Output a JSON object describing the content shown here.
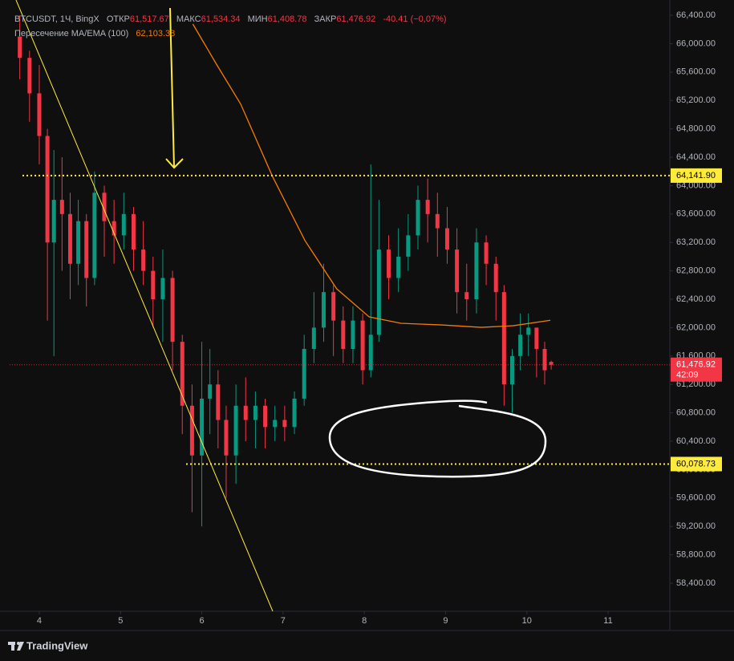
{
  "chart_data": {
    "type": "candlestick",
    "symbol": "BTCUSDT, 1Ч, BingX",
    "ohlc_labels": [
      {
        "name": "ОТКР",
        "value": "61,517.67"
      },
      {
        "name": "МАКС",
        "value": "61,534.34"
      },
      {
        "name": "МИН",
        "value": "61,408.78"
      },
      {
        "name": "ЗАКР",
        "value": "61,476.92"
      }
    ],
    "change": "-40.41 (−0,07%)",
    "up_color": "#089981",
    "down_color": "#f23645",
    "x": [
      3.76,
      3.88,
      4.0,
      4.1,
      4.18,
      4.28,
      4.38,
      4.48,
      4.58,
      4.68,
      4.8,
      4.92,
      5.04,
      5.16,
      5.28,
      5.4,
      5.52,
      5.64,
      5.76,
      5.88,
      6.0,
      6.1,
      6.2,
      6.3,
      6.42,
      6.54,
      6.66,
      6.78,
      6.9,
      7.02,
      7.14,
      7.26,
      7.38,
      7.5,
      7.62,
      7.74,
      7.86,
      7.98,
      8.08,
      8.18,
      8.3,
      8.42,
      8.54,
      8.66,
      8.78,
      8.9,
      9.02,
      9.14,
      9.26,
      9.38,
      9.5,
      9.62,
      9.72,
      9.82,
      9.92,
      10.02,
      10.12,
      10.22,
      10.3
    ],
    "open": [
      66100,
      65800,
      65300,
      64700,
      63200,
      63800,
      63600,
      62900,
      63500,
      62700,
      63900,
      63500,
      63300,
      63600,
      63100,
      62800,
      62400,
      62700,
      61800,
      60900,
      60200,
      61000,
      61200,
      60700,
      60200,
      60900,
      60700,
      60900,
      60600,
      60700,
      60600,
      61000,
      61700,
      62000,
      62500,
      62100,
      61700,
      62100,
      61400,
      61900,
      63100,
      62700,
      63000,
      63300,
      63800,
      63600,
      63400,
      63100,
      62500,
      62400,
      63200,
      62900,
      62500,
      61200,
      61600,
      61900,
      62000,
      61700,
      61517.67
    ],
    "high": [
      66400,
      65900,
      65700,
      64800,
      64500,
      64400,
      63900,
      63800,
      63600,
      64200,
      64000,
      63800,
      63900,
      63700,
      63500,
      63000,
      63100,
      62800,
      61900,
      61200,
      61800,
      61700,
      61400,
      60900,
      61200,
      61300,
      61100,
      61000,
      60900,
      60900,
      61100,
      61900,
      62500,
      62900,
      62600,
      62300,
      62300,
      62200,
      64300,
      63800,
      63300,
      63400,
      63600,
      64000,
      64100,
      63900,
      63700,
      63400,
      62900,
      63400,
      63300,
      63000,
      62600,
      61700,
      62200,
      62200,
      62000,
      61800,
      61534.34
    ],
    "low": [
      65500,
      64900,
      64300,
      62100,
      61600,
      62800,
      62400,
      62600,
      62300,
      62600,
      63000,
      62900,
      63100,
      62800,
      62600,
      62000,
      61800,
      61400,
      60500,
      59400,
      59200,
      60500,
      60300,
      59600,
      59800,
      60400,
      60300,
      60300,
      60400,
      60400,
      60500,
      60900,
      61500,
      61800,
      61600,
      61500,
      61500,
      61200,
      61300,
      61800,
      62400,
      62500,
      62800,
      63100,
      63200,
      63000,
      62900,
      62200,
      62100,
      62200,
      62600,
      62100,
      60900,
      60800,
      61400,
      61600,
      61300,
      61200,
      61408.78
    ],
    "close": [
      65800,
      65300,
      64700,
      63200,
      63800,
      63600,
      62900,
      63500,
      62700,
      63900,
      63500,
      63300,
      63600,
      63100,
      62800,
      62400,
      62700,
      61800,
      60900,
      60200,
      61000,
      61200,
      60700,
      60200,
      60900,
      60700,
      60900,
      60600,
      60700,
      60600,
      61000,
      61700,
      62000,
      62500,
      62100,
      61700,
      62100,
      61400,
      61900,
      63100,
      62700,
      63000,
      63300,
      63800,
      63600,
      63400,
      63100,
      62500,
      62400,
      63200,
      62900,
      62500,
      61200,
      61600,
      61900,
      62000,
      61700,
      61400,
      61476.92
    ],
    "indicator": {
      "name": "Пересечение MA/EMA (100)",
      "value_label": "62,103.38",
      "color": "#f57c00",
      "x": [
        5.89,
        6.18,
        6.48,
        6.87,
        7.27,
        7.66,
        8.06,
        8.45,
        8.95,
        9.44,
        9.83,
        10.29
      ],
      "values": [
        66276,
        65711,
        65146,
        64130,
        63226,
        62547,
        62151,
        62061,
        62038,
        62004,
        62027,
        62103.38
      ]
    },
    "xlim": [
      3.635,
      11.76
    ],
    "ylim": [
      58005,
      66502
    ],
    "xticks": [
      4,
      5,
      6,
      7,
      8,
      9,
      10,
      11
    ],
    "yticks": [
      {
        "value": 58400,
        "label": "58,400.00"
      },
      {
        "value": 58800,
        "label": "58,800.00"
      },
      {
        "value": 59200,
        "label": "59,200.00"
      },
      {
        "value": 59600,
        "label": "59,600.00"
      },
      {
        "value": 60000,
        "label": "60,000.00"
      },
      {
        "value": 60400,
        "label": "60,400.00"
      },
      {
        "value": 60800,
        "label": "60,800.00"
      },
      {
        "value": 61200,
        "label": "61,200.00"
      },
      {
        "value": 61600,
        "label": "61,600.00"
      },
      {
        "value": 62000,
        "label": "62,000.00"
      },
      {
        "value": 62400,
        "label": "62,400.00"
      },
      {
        "value": 62800,
        "label": "62,800.00"
      },
      {
        "value": 63200,
        "label": "63,200.00"
      },
      {
        "value": 63600,
        "label": "63,600.00"
      },
      {
        "value": 64000,
        "label": "64,000.00"
      },
      {
        "value": 64400,
        "label": "64,400.00"
      },
      {
        "value": 64800,
        "label": "64,800.00"
      },
      {
        "value": 65200,
        "label": "65,200.00"
      },
      {
        "value": 65600,
        "label": "65,600.00"
      },
      {
        "value": 66000,
        "label": "66,000.00"
      },
      {
        "value": 66400,
        "label": "66,400.00"
      }
    ],
    "levels": [
      {
        "value": 64141.9,
        "label": "64,141.90",
        "color": "#ffeb3b"
      },
      {
        "value": 60078.73,
        "label": "60,078.73",
        "color": "#ffeb3b"
      }
    ],
    "last_price": {
      "value": 61476.92,
      "label": "61,476.92",
      "countdown": "42:09",
      "color": "#f23645"
    }
  },
  "footer": {
    "brand": "TradingView"
  }
}
